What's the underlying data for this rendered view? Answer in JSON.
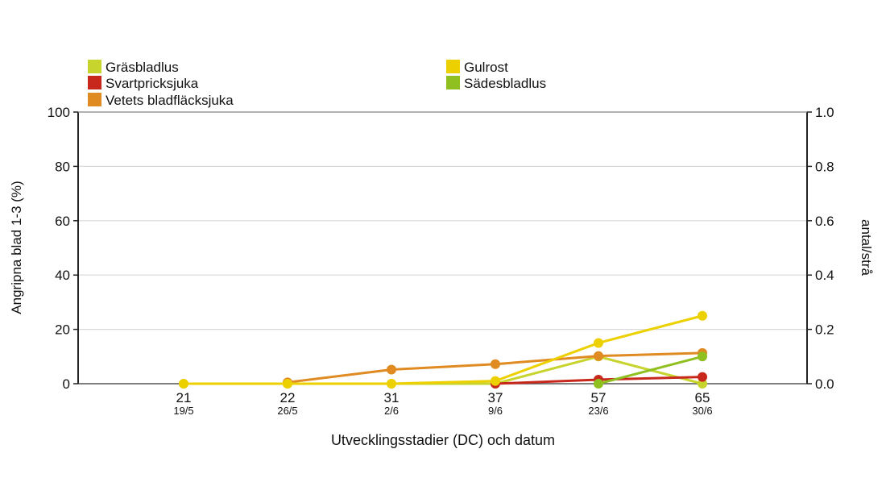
{
  "chart_data": {
    "type": "line",
    "xlabel": "Utvecklingsstadier (DC) och datum",
    "ylabel_left": "Angripna blad 1-3 (%)",
    "ylabel_right": "antal/strå",
    "ylim_left": [
      0,
      100
    ],
    "ylim_right": [
      0,
      1.0
    ],
    "yticks_left": [
      "0",
      "20",
      "40",
      "60",
      "80",
      "100"
    ],
    "yticks_right": [
      "0.0",
      "0.2",
      "0.4",
      "0.6",
      "0.8",
      "1.0"
    ],
    "categories": [
      "21",
      "22",
      "31",
      "37",
      "57",
      "65"
    ],
    "dates": [
      "19/5",
      "26/5",
      "2/6",
      "9/6",
      "23/6",
      "30/6"
    ],
    "grid": true,
    "legend_position": "top",
    "series": [
      {
        "name": "Gräsbladlus",
        "axis": "right",
        "color": "#c8d42e",
        "values": [
          0.0,
          0.0,
          0.0,
          0.0,
          0.1,
          0.0
        ]
      },
      {
        "name": "Svartpricksjuka",
        "axis": "left",
        "color": "#c8281c",
        "values": [
          null,
          null,
          null,
          0,
          1.5,
          2.5
        ]
      },
      {
        "name": "Vetets bladfläcksjuka",
        "axis": "left",
        "color": "#e08a22",
        "values": [
          null,
          0.5,
          5.2,
          7.2,
          10.2,
          11.3
        ]
      },
      {
        "name": "Gulrost",
        "axis": "left",
        "color": "#ecd000",
        "values": [
          0,
          0,
          0,
          1,
          15,
          25
        ]
      },
      {
        "name": "Sädesbladlus",
        "axis": "right",
        "color": "#8fc020",
        "values": [
          null,
          null,
          null,
          null,
          0.0,
          0.1
        ]
      }
    ]
  }
}
